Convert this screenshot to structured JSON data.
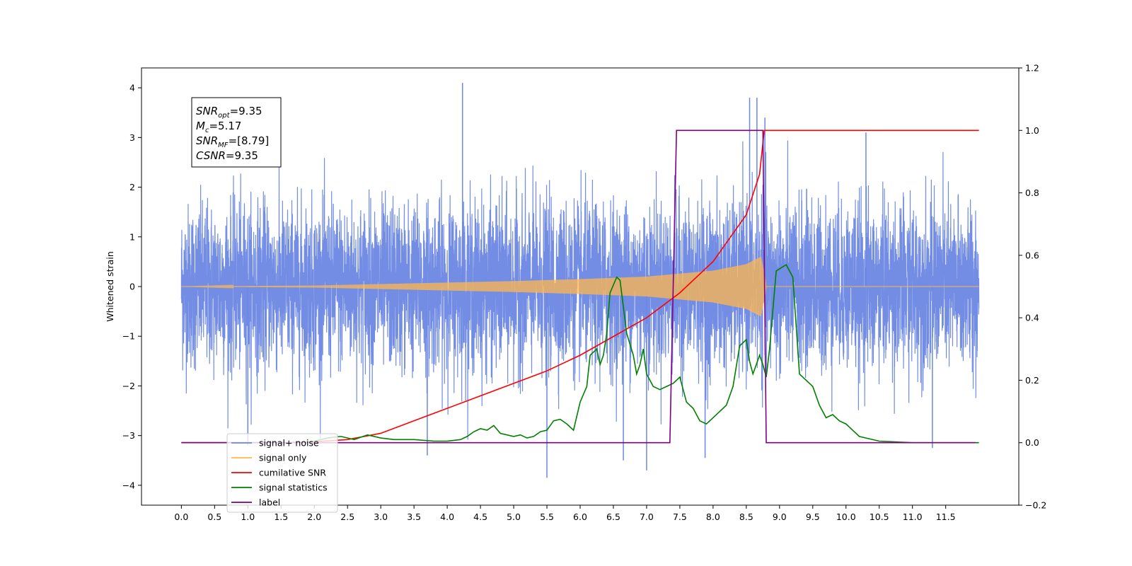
{
  "chart_data": {
    "type": "line",
    "title": "",
    "xlabel": "",
    "ylabel": "Whitened strain",
    "xlim": [
      -0.6,
      12.6
    ],
    "ylim": [
      -4.4,
      4.4
    ],
    "y2lim": [
      -0.2,
      1.2
    ],
    "grid": false,
    "legend_position": "lower-left",
    "x_ticks": [
      "0.0",
      "0.5",
      "1.0",
      "1.5",
      "2.0",
      "2.5",
      "3.0",
      "3.5",
      "4.0",
      "4.5",
      "5.0",
      "5.5",
      "6.0",
      "6.5",
      "7.0",
      "7.5",
      "8.0",
      "8.5",
      "9.0",
      "9.5",
      "10.0",
      "10.5",
      "11.0",
      "11.5"
    ],
    "y_ticks": [
      "4",
      "3",
      "2",
      "1",
      "0",
      "−1",
      "−2",
      "−3",
      "−4"
    ],
    "y2_ticks": [
      "1.2",
      "1.0",
      "0.8",
      "0.6",
      "0.4",
      "0.2",
      "0.0",
      "−0.2"
    ],
    "info_box": [
      {
        "sym": "SNR",
        "sub": "opt",
        "val": "=9.35"
      },
      {
        "sym": "M",
        "sub": "c",
        "val": "=5.17"
      },
      {
        "sym": "SNR",
        "sub": "MF",
        "val": "=[8.79]"
      },
      {
        "sym": "CSNR",
        "sub": "",
        "val": "=9.35"
      }
    ],
    "series": [
      {
        "name": "signal+ noise",
        "axis": "left",
        "color": "#6b87e3",
        "description": "dense noisy trace over x 0–12",
        "x_range": [
          0,
          12
        ],
        "amplitude_typical": 2.0,
        "spikes": [
          [
            4.23,
            4.1
          ],
          [
            8.55,
            3.8
          ],
          [
            8.66,
            3.8
          ],
          [
            8.78,
            3.4
          ],
          [
            5.5,
            -3.85
          ],
          [
            7.0,
            -3.7
          ],
          [
            6.65,
            -3.5
          ],
          [
            7.88,
            -3.45
          ],
          [
            1.0,
            -3.2
          ],
          [
            3.7,
            -3.4
          ],
          [
            11.3,
            -3.25
          ],
          [
            10.3,
            3.1
          ]
        ]
      },
      {
        "name": "signal only",
        "axis": "left",
        "color": "#ffb74d",
        "description": "chirp envelope growing toward merger",
        "envelope": [
          [
            0.0,
            0.0
          ],
          [
            2.0,
            0.02
          ],
          [
            3.0,
            0.05
          ],
          [
            4.0,
            0.08
          ],
          [
            5.0,
            0.11
          ],
          [
            6.0,
            0.15
          ],
          [
            7.0,
            0.2
          ],
          [
            8.0,
            0.32
          ],
          [
            8.5,
            0.45
          ],
          [
            8.72,
            0.6
          ],
          [
            8.78,
            0.2
          ],
          [
            8.8,
            0.0
          ],
          [
            12.0,
            0.0
          ]
        ]
      },
      {
        "name": "cumilative SNR",
        "axis": "right",
        "color": "#ff0000",
        "points": [
          [
            0.0,
            0.0
          ],
          [
            1.5,
            0.0
          ],
          [
            2.0,
            0.003
          ],
          [
            2.5,
            0.01
          ],
          [
            3.0,
            0.03
          ],
          [
            3.5,
            0.07
          ],
          [
            4.0,
            0.11
          ],
          [
            4.5,
            0.15
          ],
          [
            5.0,
            0.19
          ],
          [
            5.5,
            0.23
          ],
          [
            6.0,
            0.28
          ],
          [
            6.5,
            0.34
          ],
          [
            7.0,
            0.4
          ],
          [
            7.5,
            0.48
          ],
          [
            8.0,
            0.58
          ],
          [
            8.5,
            0.73
          ],
          [
            8.7,
            0.86
          ],
          [
            8.75,
            0.96
          ],
          [
            8.77,
            1.0
          ],
          [
            12.0,
            1.0
          ]
        ]
      },
      {
        "name": "signal statistics",
        "axis": "right",
        "color": "#008000",
        "points": [
          [
            0.0,
            0.0
          ],
          [
            1.5,
            0.0
          ],
          [
            1.8,
            0.0
          ],
          [
            2.0,
            0.005
          ],
          [
            2.2,
            0.015
          ],
          [
            2.4,
            0.02
          ],
          [
            2.6,
            0.01
          ],
          [
            2.8,
            0.025
          ],
          [
            3.0,
            0.015
          ],
          [
            3.2,
            0.01
          ],
          [
            3.5,
            0.01
          ],
          [
            3.8,
            0.005
          ],
          [
            4.0,
            0.005
          ],
          [
            4.2,
            0.01
          ],
          [
            4.3,
            0.02
          ],
          [
            4.4,
            0.035
          ],
          [
            4.5,
            0.045
          ],
          [
            4.6,
            0.04
          ],
          [
            4.7,
            0.055
          ],
          [
            4.8,
            0.03
          ],
          [
            5.0,
            0.02
          ],
          [
            5.1,
            0.025
          ],
          [
            5.2,
            0.015
          ],
          [
            5.3,
            0.02
          ],
          [
            5.4,
            0.035
          ],
          [
            5.5,
            0.04
          ],
          [
            5.6,
            0.07
          ],
          [
            5.7,
            0.075
          ],
          [
            5.8,
            0.06
          ],
          [
            5.9,
            0.04
          ],
          [
            6.0,
            0.13
          ],
          [
            6.1,
            0.18
          ],
          [
            6.15,
            0.28
          ],
          [
            6.25,
            0.3
          ],
          [
            6.3,
            0.25
          ],
          [
            6.35,
            0.28
          ],
          [
            6.4,
            0.35
          ],
          [
            6.45,
            0.48
          ],
          [
            6.55,
            0.53
          ],
          [
            6.6,
            0.52
          ],
          [
            6.7,
            0.35
          ],
          [
            6.8,
            0.28
          ],
          [
            6.85,
            0.22
          ],
          [
            6.9,
            0.25
          ],
          [
            6.95,
            0.3
          ],
          [
            7.0,
            0.22
          ],
          [
            7.1,
            0.18
          ],
          [
            7.2,
            0.17
          ],
          [
            7.3,
            0.18
          ],
          [
            7.4,
            0.19
          ],
          [
            7.5,
            0.21
          ],
          [
            7.55,
            0.17
          ],
          [
            7.6,
            0.13
          ],
          [
            7.7,
            0.11
          ],
          [
            7.8,
            0.07
          ],
          [
            7.9,
            0.06
          ],
          [
            8.0,
            0.08
          ],
          [
            8.1,
            0.1
          ],
          [
            8.2,
            0.12
          ],
          [
            8.3,
            0.18
          ],
          [
            8.4,
            0.31
          ],
          [
            8.5,
            0.33
          ],
          [
            8.55,
            0.26
          ],
          [
            8.6,
            0.22
          ],
          [
            8.7,
            0.28
          ],
          [
            8.75,
            0.25
          ],
          [
            8.8,
            0.21
          ],
          [
            8.85,
            0.3
          ],
          [
            8.95,
            0.55
          ],
          [
            9.1,
            0.57
          ],
          [
            9.2,
            0.53
          ],
          [
            9.3,
            0.22
          ],
          [
            9.4,
            0.2
          ],
          [
            9.5,
            0.18
          ],
          [
            9.6,
            0.12
          ],
          [
            9.7,
            0.08
          ],
          [
            9.8,
            0.09
          ],
          [
            9.9,
            0.07
          ],
          [
            10.0,
            0.06
          ],
          [
            10.1,
            0.04
          ],
          [
            10.2,
            0.02
          ],
          [
            10.5,
            0.005
          ],
          [
            11.0,
            0.0
          ],
          [
            12.0,
            0.0
          ]
        ]
      },
      {
        "name": "label",
        "axis": "right",
        "color": "#800080",
        "points": [
          [
            0.0,
            0.0
          ],
          [
            7.35,
            0.0
          ],
          [
            7.45,
            1.0
          ],
          [
            8.75,
            1.0
          ],
          [
            8.8,
            0.0
          ],
          [
            11.95,
            0.0
          ]
        ]
      }
    ]
  }
}
